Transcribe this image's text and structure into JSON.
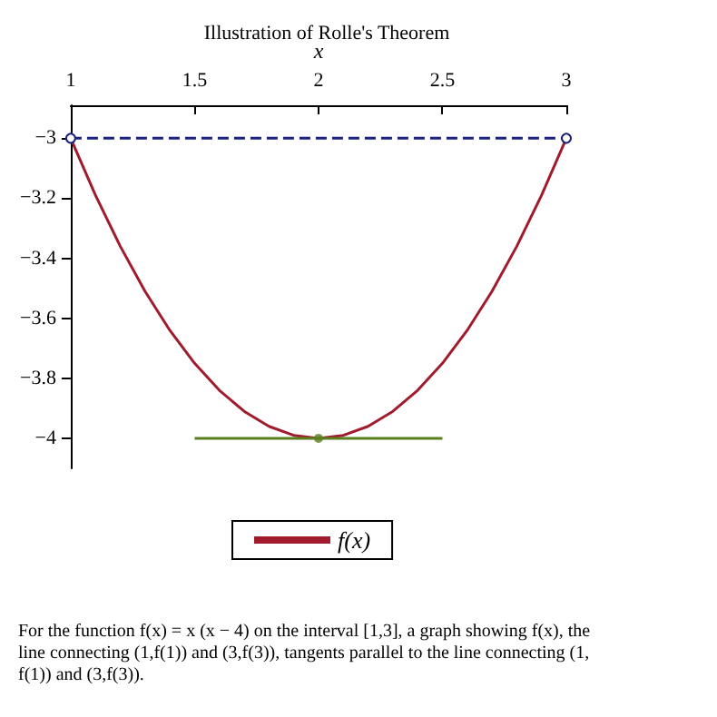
{
  "chart_data": {
    "type": "line",
    "title": "Illustration of Rolle's Theorem",
    "xlabel": "x",
    "xlim": [
      1,
      3
    ],
    "xticks": [
      1,
      1.5,
      2,
      2.5,
      3
    ],
    "ylim": [
      -4.1,
      -2.89
    ],
    "yticks": [
      -4,
      -3.8,
      -3.6,
      -3.4,
      -3.2,
      -3
    ],
    "grid": false,
    "legend": "bottom",
    "series": [
      {
        "name": "f(x)",
        "color": "#a01c2c",
        "line_style": "solid",
        "marker": "none",
        "x": [
          1,
          1.1,
          1.2,
          1.3,
          1.4,
          1.5,
          1.6,
          1.7,
          1.8,
          1.9,
          2,
          2.1,
          2.2,
          2.3,
          2.4,
          2.5,
          2.6,
          2.7,
          2.8,
          2.9,
          3
        ],
        "values": [
          -3,
          -3.19,
          -3.36,
          -3.51,
          -3.64,
          -3.75,
          -3.84,
          -3.91,
          -3.96,
          -3.99,
          -4,
          -3.99,
          -3.96,
          -3.91,
          -3.84,
          -3.75,
          -3.64,
          -3.51,
          -3.36,
          -3.19,
          -3
        ]
      },
      {
        "color": "#1a237e",
        "line_style": "dashed",
        "marker": "circle",
        "x": [
          1,
          3
        ],
        "values": [
          -3,
          -3
        ]
      },
      {
        "color": "#5a7f1e",
        "line_style": "solid",
        "marker": "none",
        "x": [
          1.5,
          2.5
        ],
        "values": [
          -4,
          -4
        ]
      },
      {
        "type": "scatter",
        "color": "#5a7f1e",
        "marker": "circle",
        "x": [
          2
        ],
        "values": [
          -4
        ]
      }
    ],
    "annotations": [
      "For the function f(x) = x (x − 4) on the interval [1,3], a graph showing f(x), the line connecting (1,f(1)) and (3,f(3)), tangents parallel to the line connecting (1,f(1)) and (3,f(3))."
    ]
  }
}
